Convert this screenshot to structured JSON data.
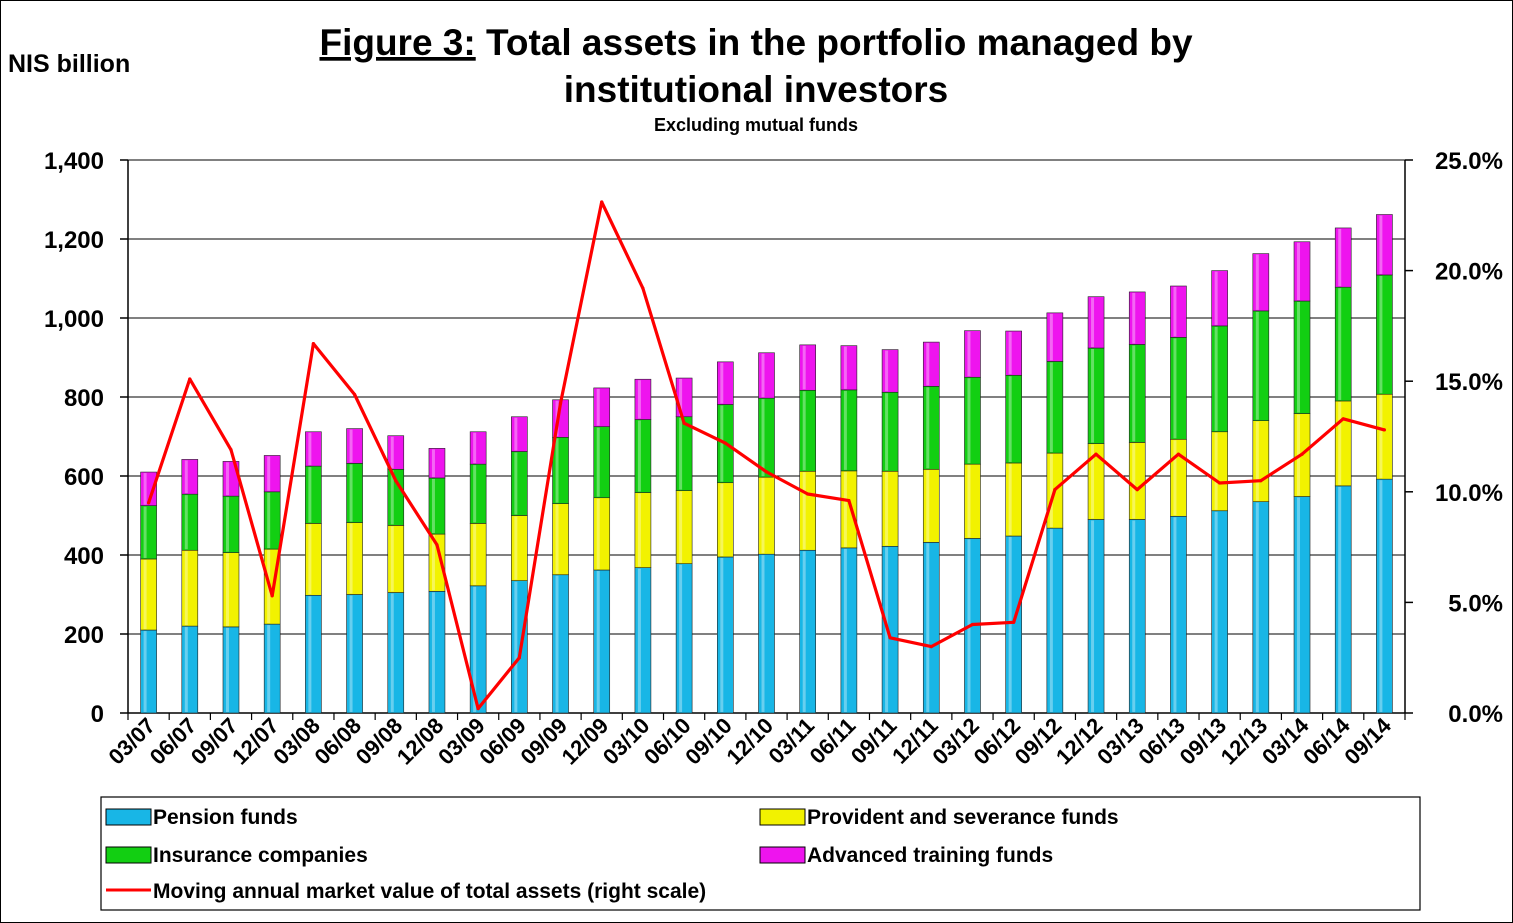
{
  "chart_data": {
    "type": "bar",
    "stacked": true,
    "title_prefix": "Figure 3:",
    "title_line1": "Total assets in the portfolio managed by",
    "title_line2": "institutional investors",
    "subtitle": "Excluding mutual funds",
    "ylabel": "NIS billion",
    "ylim": [
      0,
      1400
    ],
    "yticks": [
      "0",
      "200",
      "400",
      "600",
      "800",
      "1,000",
      "1,200",
      "1,400"
    ],
    "y2lim": [
      0,
      25
    ],
    "y2ticks": [
      "0.0%",
      "5.0%",
      "10.0%",
      "15.0%",
      "20.0%",
      "25.0%"
    ],
    "grid": true,
    "legend_position": "bottom",
    "categories": [
      "03/07",
      "06/07",
      "09/07",
      "12/07",
      "03/08",
      "06/08",
      "09/08",
      "12/08",
      "03/09",
      "06/09",
      "09/09",
      "12/09",
      "03/10",
      "06/10",
      "09/10",
      "12/10",
      "03/11",
      "06/11",
      "09/11",
      "12/11",
      "03/12",
      "06/12",
      "09/12",
      "12/12",
      "03/13",
      "06/13",
      "09/13",
      "12/13",
      "03/14",
      "06/14",
      "09/14"
    ],
    "series": [
      {
        "name": "Pension funds",
        "color": "#18b6e6",
        "values": [
          210,
          220,
          218,
          225,
          298,
          300,
          305,
          308,
          322,
          335,
          350,
          362,
          368,
          378,
          395,
          402,
          412,
          418,
          422,
          432,
          442,
          448,
          468,
          490,
          490,
          498,
          512,
          535,
          548,
          575,
          592
        ]
      },
      {
        "name": "Provident and severance funds",
        "color": "#f2f200",
        "values": [
          180,
          192,
          188,
          190,
          182,
          182,
          170,
          145,
          158,
          165,
          180,
          183,
          190,
          185,
          188,
          195,
          200,
          195,
          190,
          185,
          188,
          185,
          190,
          192,
          195,
          195,
          200,
          205,
          210,
          215,
          215
        ]
      },
      {
        "name": "Insurance companies",
        "color": "#12cf12",
        "values": [
          135,
          142,
          143,
          145,
          145,
          150,
          142,
          142,
          150,
          162,
          168,
          180,
          185,
          187,
          198,
          200,
          205,
          205,
          200,
          210,
          220,
          222,
          232,
          242,
          248,
          258,
          268,
          278,
          285,
          288,
          302
        ]
      },
      {
        "name": "Advanced training funds",
        "color": "#ee14ee",
        "values": [
          85,
          88,
          88,
          92,
          87,
          88,
          85,
          75,
          82,
          88,
          95,
          98,
          102,
          98,
          108,
          115,
          115,
          112,
          108,
          112,
          118,
          112,
          123,
          130,
          133,
          130,
          140,
          145,
          150,
          150,
          153
        ]
      }
    ],
    "line_series": {
      "name": "Moving annual market value of total assets (right scale)",
      "axis": "right",
      "color": "#ff0000",
      "values": [
        9.5,
        15.1,
        11.9,
        5.3,
        16.7,
        14.4,
        10.5,
        7.6,
        0.2,
        2.5,
        14.0,
        23.1,
        19.2,
        13.1,
        12.2,
        10.9,
        9.9,
        9.6,
        3.4,
        3.0,
        4.0,
        4.1,
        10.1,
        11.7,
        10.1,
        11.7,
        10.4,
        10.5,
        11.7,
        13.3,
        12.8
      ]
    }
  }
}
